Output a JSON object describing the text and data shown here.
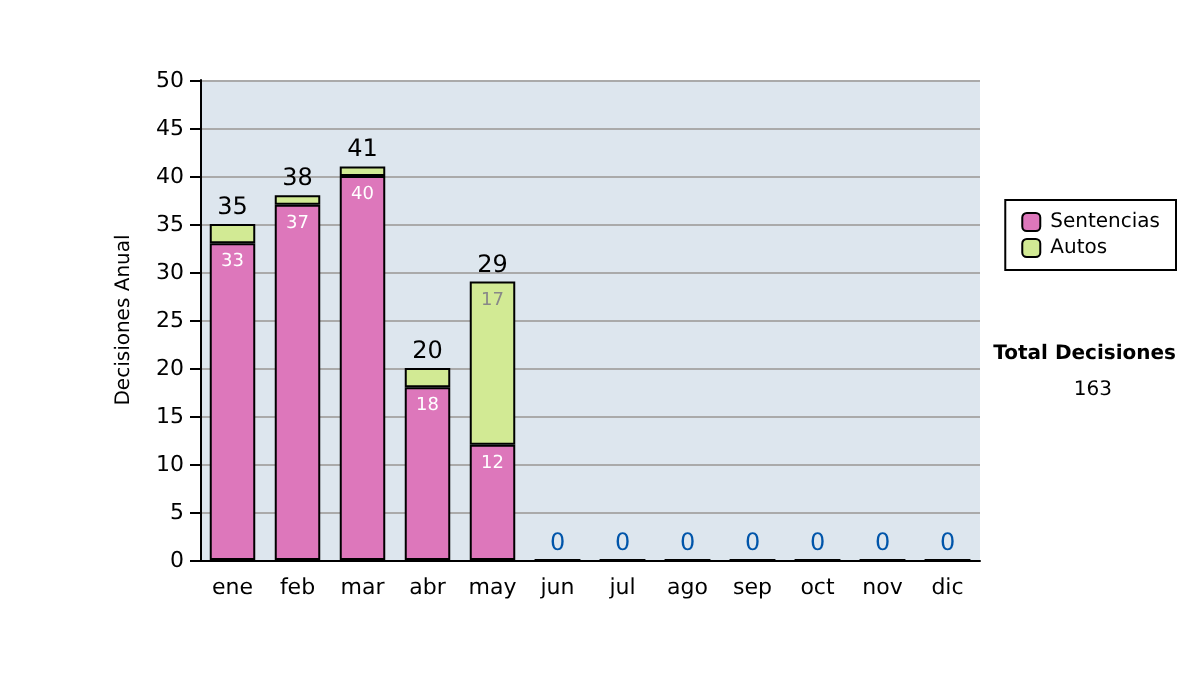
{
  "chart_data": {
    "type": "bar",
    "stacked": true,
    "ylabel": "Decisiones Anual",
    "categories": [
      "ene",
      "feb",
      "mar",
      "abr",
      "may",
      "jun",
      "jul",
      "ago",
      "sep",
      "oct",
      "nov",
      "dic"
    ],
    "series": [
      {
        "name": "Sentencias",
        "color": "#dd77bb",
        "values": [
          33,
          37,
          40,
          18,
          12,
          0,
          0,
          0,
          0,
          0,
          0,
          0
        ],
        "value_labels": [
          "33",
          "37",
          "40",
          "18",
          "12",
          null,
          null,
          null,
          null,
          null,
          null,
          null
        ]
      },
      {
        "name": "Autos",
        "color": "#d2ea94",
        "values": [
          2,
          1,
          1,
          2,
          17,
          0,
          0,
          0,
          0,
          0,
          0,
          0
        ],
        "value_labels": [
          null,
          null,
          null,
          null,
          "17",
          null,
          null,
          null,
          null,
          null,
          null,
          null
        ]
      }
    ],
    "totals": [
      "35",
      "38",
      "41",
      "20",
      "29",
      "0",
      "0",
      "0",
      "0",
      "0",
      "0",
      "0"
    ],
    "ylim": [
      0,
      50
    ],
    "yticks": [
      0,
      5,
      10,
      15,
      20,
      25,
      30,
      35,
      40,
      45,
      50
    ],
    "grid": "y",
    "legend": "right",
    "annotations": [
      "Total Decisiones",
      "163"
    ]
  }
}
